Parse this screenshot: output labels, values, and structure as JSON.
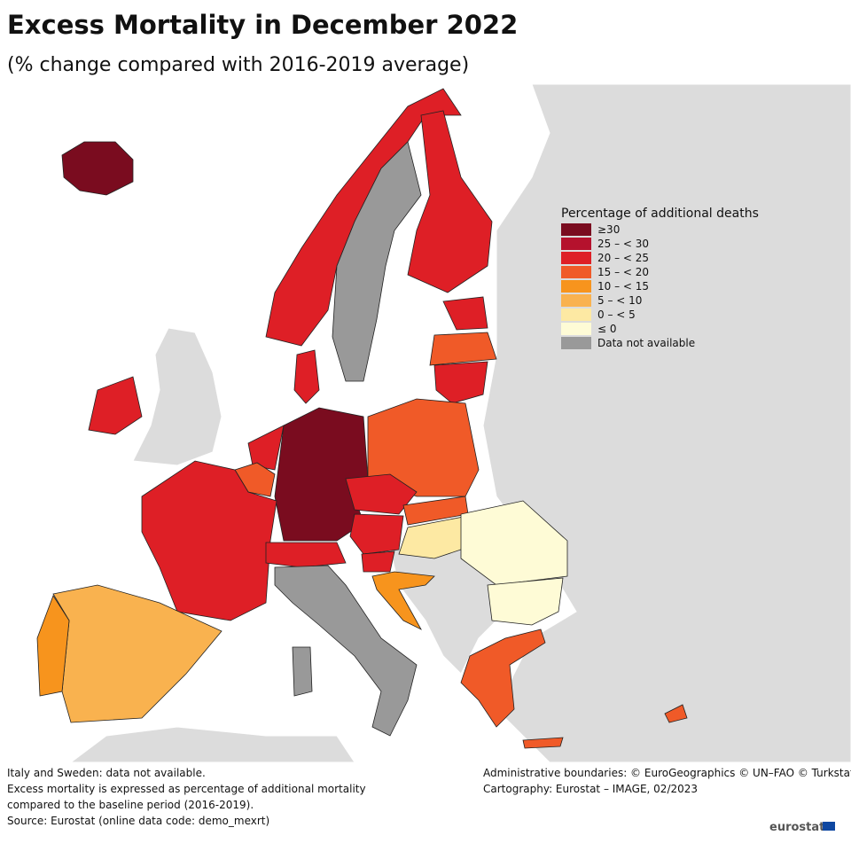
{
  "title": "Excess Mortality in December 2022",
  "subtitle": "(% change compared with 2016-2019 average)",
  "legend": {
    "title": "Percentage of additional deaths",
    "items": [
      {
        "label": "≥30",
        "color": "#7a0c1f"
      },
      {
        "label": "25 – < 30",
        "color": "#b5122d"
      },
      {
        "label": "20 – < 25",
        "color": "#de1f26"
      },
      {
        "label": "15 – < 20",
        "color": "#f05a28"
      },
      {
        "label": "10 – < 15",
        "color": "#f7941d"
      },
      {
        "label": "5 – < 10",
        "color": "#f9b24f"
      },
      {
        "label": "0 – < 5",
        "color": "#fde9a3"
      },
      {
        "label": "≤ 0",
        "color": "#fefbd6"
      },
      {
        "label": "Data not available",
        "color": "#999999"
      }
    ]
  },
  "notes": [
    "Italy and Sweden: data not available.",
    "Excess mortality is expressed as percentage of additional mortality",
    "compared to the baseline period (2016-2019).",
    "Source: Eurostat (online data code: demo_mexrt)"
  ],
  "credits": [
    "Administrative boundaries: © EuroGeographics © UN–FAO © Turkstat",
    "Cartography: Eurostat – IMAGE, 02/2023"
  ],
  "logo": "eurostat"
}
